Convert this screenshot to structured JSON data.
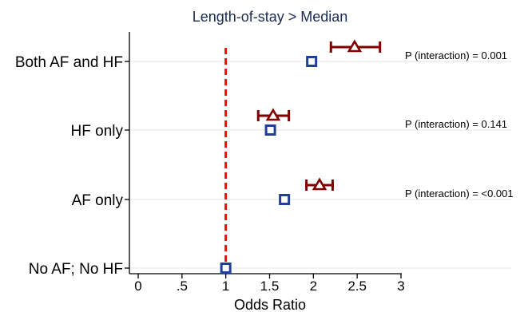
{
  "chart_data": {
    "type": "scatter",
    "title": "Length-of-stay > Median",
    "xlabel": "Odds Ratio",
    "ylabel": "",
    "xlim": [
      0,
      3
    ],
    "xticks": [
      "0",
      ".5",
      "1",
      "1.5",
      "2",
      "2.5",
      "3"
    ],
    "xtick_values": [
      0,
      0.5,
      1,
      1.5,
      2,
      2.5,
      3
    ],
    "categories": [
      "Both AF and HF",
      "HF only",
      "AF only",
      "No AF; No HF"
    ],
    "reference_line": {
      "x": 1,
      "color": "#ff0000",
      "style": "dashed"
    },
    "series": [
      {
        "marker": "square",
        "color": "#1f3f99",
        "points": [
          {
            "category": "Both AF and HF",
            "value": 1.98
          },
          {
            "category": "HF only",
            "value": 1.51
          },
          {
            "category": "AF only",
            "value": 1.67
          },
          {
            "category": "No AF; No HF",
            "value": 1.0
          }
        ]
      },
      {
        "marker": "triangle",
        "color": "#800000",
        "points": [
          {
            "category": "Both AF and HF",
            "value": 2.47,
            "ci": [
              2.2,
              2.76
            ]
          },
          {
            "category": "HF only",
            "value": 1.54,
            "ci": [
              1.37,
              1.72
            ]
          },
          {
            "category": "AF only",
            "value": 2.07,
            "ci": [
              1.92,
              2.22
            ]
          }
        ]
      }
    ],
    "annotations": [
      {
        "category": "Both AF and HF",
        "text": "P (interaction) = 0.001"
      },
      {
        "category": "HF only",
        "text": "P (interaction) = 0.141"
      },
      {
        "category": "AF only",
        "text": "P (interaction) = <0.001"
      }
    ],
    "grid": true
  }
}
